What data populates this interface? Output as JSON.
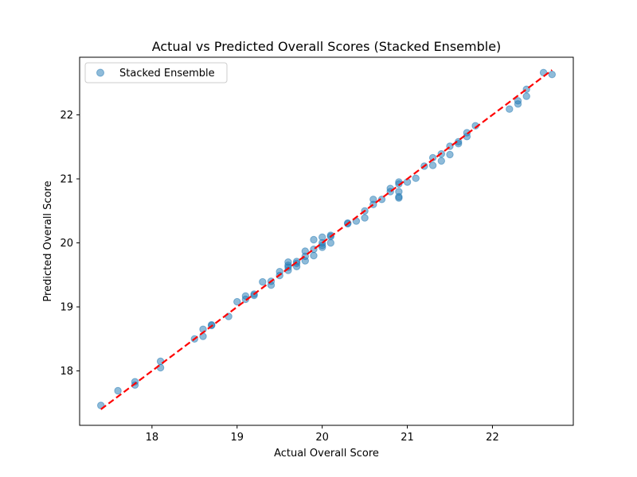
{
  "chart_data": {
    "type": "scatter",
    "title": "Actual vs Predicted Overall Scores (Stacked Ensemble)",
    "xlabel": "Actual Overall Score",
    "ylabel": "Predicted Overall Score",
    "xlim": [
      17.15,
      22.95
    ],
    "ylim": [
      17.15,
      22.9
    ],
    "xticks": [
      18,
      19,
      20,
      21,
      22
    ],
    "yticks": [
      18,
      19,
      20,
      21,
      22
    ],
    "legend": {
      "position": "top-left",
      "entries": [
        "Stacked Ensemble"
      ]
    },
    "grid": false,
    "colors": {
      "points": "#1f77b4",
      "reference_line": "#ff0000"
    },
    "reference_line": {
      "style": "dashed",
      "from": [
        17.4,
        17.4
      ],
      "to": [
        22.7,
        22.7
      ]
    },
    "series": [
      {
        "name": "Stacked Ensemble",
        "points": [
          [
            17.4,
            17.46
          ],
          [
            17.6,
            17.69
          ],
          [
            17.8,
            17.78
          ],
          [
            17.8,
            17.83
          ],
          [
            18.1,
            18.05
          ],
          [
            18.1,
            18.15
          ],
          [
            18.5,
            18.5
          ],
          [
            18.6,
            18.54
          ],
          [
            18.6,
            18.65
          ],
          [
            18.7,
            18.71
          ],
          [
            18.7,
            18.72
          ],
          [
            18.9,
            18.85
          ],
          [
            19.0,
            19.08
          ],
          [
            19.1,
            19.12
          ],
          [
            19.1,
            19.17
          ],
          [
            19.2,
            19.2
          ],
          [
            19.2,
            19.18
          ],
          [
            19.3,
            19.39
          ],
          [
            19.4,
            19.34
          ],
          [
            19.4,
            19.4
          ],
          [
            19.5,
            19.49
          ],
          [
            19.5,
            19.55
          ],
          [
            19.6,
            19.57
          ],
          [
            19.6,
            19.62
          ],
          [
            19.6,
            19.65
          ],
          [
            19.6,
            19.7
          ],
          [
            19.7,
            19.63
          ],
          [
            19.7,
            19.68
          ],
          [
            19.7,
            19.71
          ],
          [
            19.8,
            19.72
          ],
          [
            19.8,
            19.79
          ],
          [
            19.8,
            19.87
          ],
          [
            19.9,
            19.8
          ],
          [
            19.9,
            19.9
          ],
          [
            19.9,
            20.05
          ],
          [
            20.0,
            19.93
          ],
          [
            20.0,
            19.96
          ],
          [
            20.0,
            20.0
          ],
          [
            20.0,
            20.09
          ],
          [
            20.1,
            20.0
          ],
          [
            20.1,
            20.1
          ],
          [
            20.1,
            20.12
          ],
          [
            20.3,
            20.3
          ],
          [
            20.3,
            20.31
          ],
          [
            20.4,
            20.34
          ],
          [
            20.5,
            20.39
          ],
          [
            20.5,
            20.5
          ],
          [
            20.6,
            20.6
          ],
          [
            20.6,
            20.68
          ],
          [
            20.7,
            20.68
          ],
          [
            20.8,
            20.8
          ],
          [
            20.8,
            20.85
          ],
          [
            20.9,
            20.7
          ],
          [
            20.9,
            20.72
          ],
          [
            20.9,
            20.8
          ],
          [
            20.9,
            20.92
          ],
          [
            20.9,
            20.95
          ],
          [
            21.0,
            20.95
          ],
          [
            21.1,
            21.01
          ],
          [
            21.2,
            21.2
          ],
          [
            21.3,
            21.21
          ],
          [
            21.3,
            21.33
          ],
          [
            21.4,
            21.28
          ],
          [
            21.4,
            21.39
          ],
          [
            21.5,
            21.38
          ],
          [
            21.5,
            21.51
          ],
          [
            21.6,
            21.55
          ],
          [
            21.6,
            21.58
          ],
          [
            21.7,
            21.66
          ],
          [
            21.7,
            21.72
          ],
          [
            21.8,
            21.83
          ],
          [
            22.2,
            22.09
          ],
          [
            22.3,
            22.17
          ],
          [
            22.3,
            22.22
          ],
          [
            22.4,
            22.29
          ],
          [
            22.4,
            22.4
          ],
          [
            22.6,
            22.66
          ],
          [
            22.7,
            22.63
          ]
        ]
      }
    ]
  }
}
